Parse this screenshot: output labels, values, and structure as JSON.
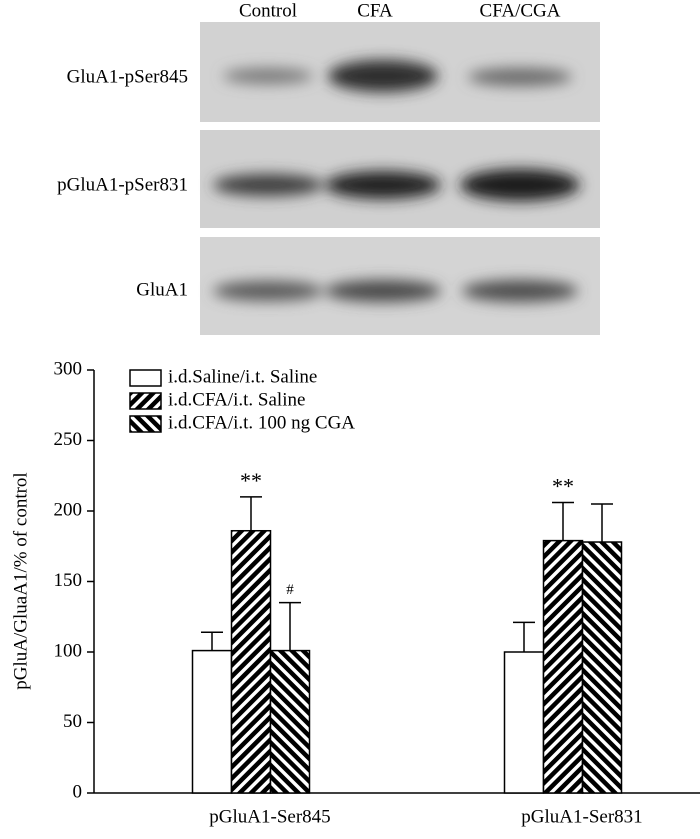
{
  "blot": {
    "columns": [
      "Control",
      "CFA",
      "CFA/CGA"
    ],
    "rows": [
      "GluA1-pSer845",
      "pGluA1-pSer831",
      "GluA1"
    ]
  },
  "chart_data": {
    "type": "bar",
    "ylabel": "pGluA/GluaA1/% of control",
    "categories": [
      "pGluA1-Ser845",
      "pGluA1-Ser831"
    ],
    "series": [
      {
        "name": "i.d.Saline/i.t. Saline",
        "color": "#000000",
        "pattern": "none",
        "values": [
          101,
          100
        ],
        "errors": [
          13,
          21
        ],
        "annotations": [
          null,
          null
        ]
      },
      {
        "name": "i.d.CFA/i.t. Saline",
        "color": "#000000",
        "pattern": "diagonal-up",
        "values": [
          186,
          179
        ],
        "errors": [
          24,
          27
        ],
        "annotations": [
          "**",
          "**"
        ]
      },
      {
        "name": "i.d.CFA/i.t. 100 ng CGA",
        "color": "#000000",
        "pattern": "diagonal-down",
        "values": [
          101,
          178
        ],
        "errors": [
          34,
          27
        ],
        "annotations": [
          "#",
          null
        ]
      }
    ],
    "ylim": [
      0,
      300
    ],
    "yticks": [
      0,
      50,
      100,
      150,
      200,
      250,
      300
    ],
    "legend": "top-left",
    "grid": false
  }
}
